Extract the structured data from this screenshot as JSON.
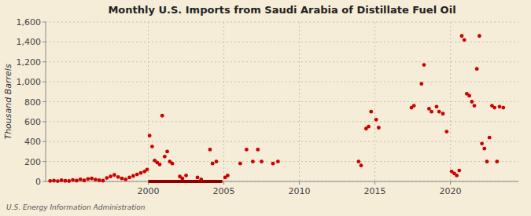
{
  "chart_data": {
    "type": "scatter",
    "title": "Monthly U.S. Imports from Saudi Arabia of Distillate Fuel Oil",
    "ylabel": "Thousand Barrels",
    "annotations": [
      "U.S. Energy Information Administration"
    ],
    "xlim": [
      1993.2,
      2024.5
    ],
    "ylim": [
      0,
      1600
    ],
    "xticks": [
      2000,
      2005,
      2010,
      2015,
      2020
    ],
    "yticks": [
      0,
      200,
      400,
      600,
      800,
      {
        "value": 1000,
        "label": "1,000"
      },
      {
        "value": 1200,
        "label": "1,200"
      },
      {
        "value": 1400,
        "label": "1,400"
      },
      {
        "value": 1600,
        "label": "1,600"
      }
    ],
    "grid": true,
    "series": [
      {
        "type": "scatter",
        "color": "#cc0000",
        "x": [
          1993.5,
          1993.75,
          1994.0,
          1994.25,
          1994.5,
          1994.75,
          1995.0,
          1995.25,
          1995.5,
          1995.75,
          1996.0,
          1996.25,
          1996.5,
          1996.75,
          1997.0,
          1997.25,
          1997.5,
          1997.75,
          1998.0,
          1998.25,
          1998.5,
          1998.75,
          1999.0,
          1999.25,
          1999.5,
          1999.75,
          1999.917,
          2000.083,
          2000.25,
          2000.417,
          2000.583,
          2000.75,
          2000.917,
          2001.083,
          2001.25,
          2001.417,
          2001.583,
          2002.083,
          2002.25,
          2002.5,
          2003.25,
          2003.5,
          2004.083,
          2004.25,
          2004.5,
          2005.083,
          2005.25,
          2006.083,
          2006.5,
          2006.917,
          2007.25,
          2007.5,
          2008.25,
          2008.583,
          2013.917,
          2014.083,
          2014.417,
          2014.583,
          2014.75,
          2015.083,
          2015.25,
          2017.417,
          2017.583,
          2018.083,
          2018.25,
          2018.583,
          2018.75,
          2019.083,
          2019.25,
          2019.5,
          2019.75,
          2020.083,
          2020.25,
          2020.417,
          2020.583,
          2020.75,
          2020.917,
          2021.083,
          2021.25,
          2021.417,
          2021.583,
          2021.75,
          2021.917,
          2022.083,
          2022.25,
          2022.417,
          2022.583,
          2022.75,
          2022.917,
          2023.083,
          2023.25,
          2023.5
        ],
        "values": [
          5,
          8,
          3,
          12,
          6,
          4,
          15,
          8,
          20,
          10,
          25,
          30,
          18,
          12,
          8,
          35,
          50,
          65,
          45,
          30,
          20,
          40,
          55,
          70,
          85,
          100,
          120,
          460,
          350,
          210,
          190,
          170,
          660,
          250,
          300,
          200,
          180,
          50,
          30,
          60,
          40,
          20,
          320,
          180,
          200,
          40,
          60,
          180,
          320,
          200,
          320,
          200,
          180,
          200,
          200,
          160,
          530,
          550,
          700,
          620,
          540,
          740,
          760,
          980,
          1170,
          730,
          700,
          750,
          700,
          680,
          500,
          100,
          80,
          60,
          110,
          1460,
          1420,
          880,
          860,
          800,
          760,
          1130,
          1460,
          380,
          330,
          200,
          440,
          760,
          740,
          200,
          750,
          740
        ]
      },
      {
        "type": "line",
        "color": "#8b0000",
        "x": [
          2000.0,
          2004.9
        ],
        "values": [
          0,
          0
        ]
      }
    ]
  }
}
